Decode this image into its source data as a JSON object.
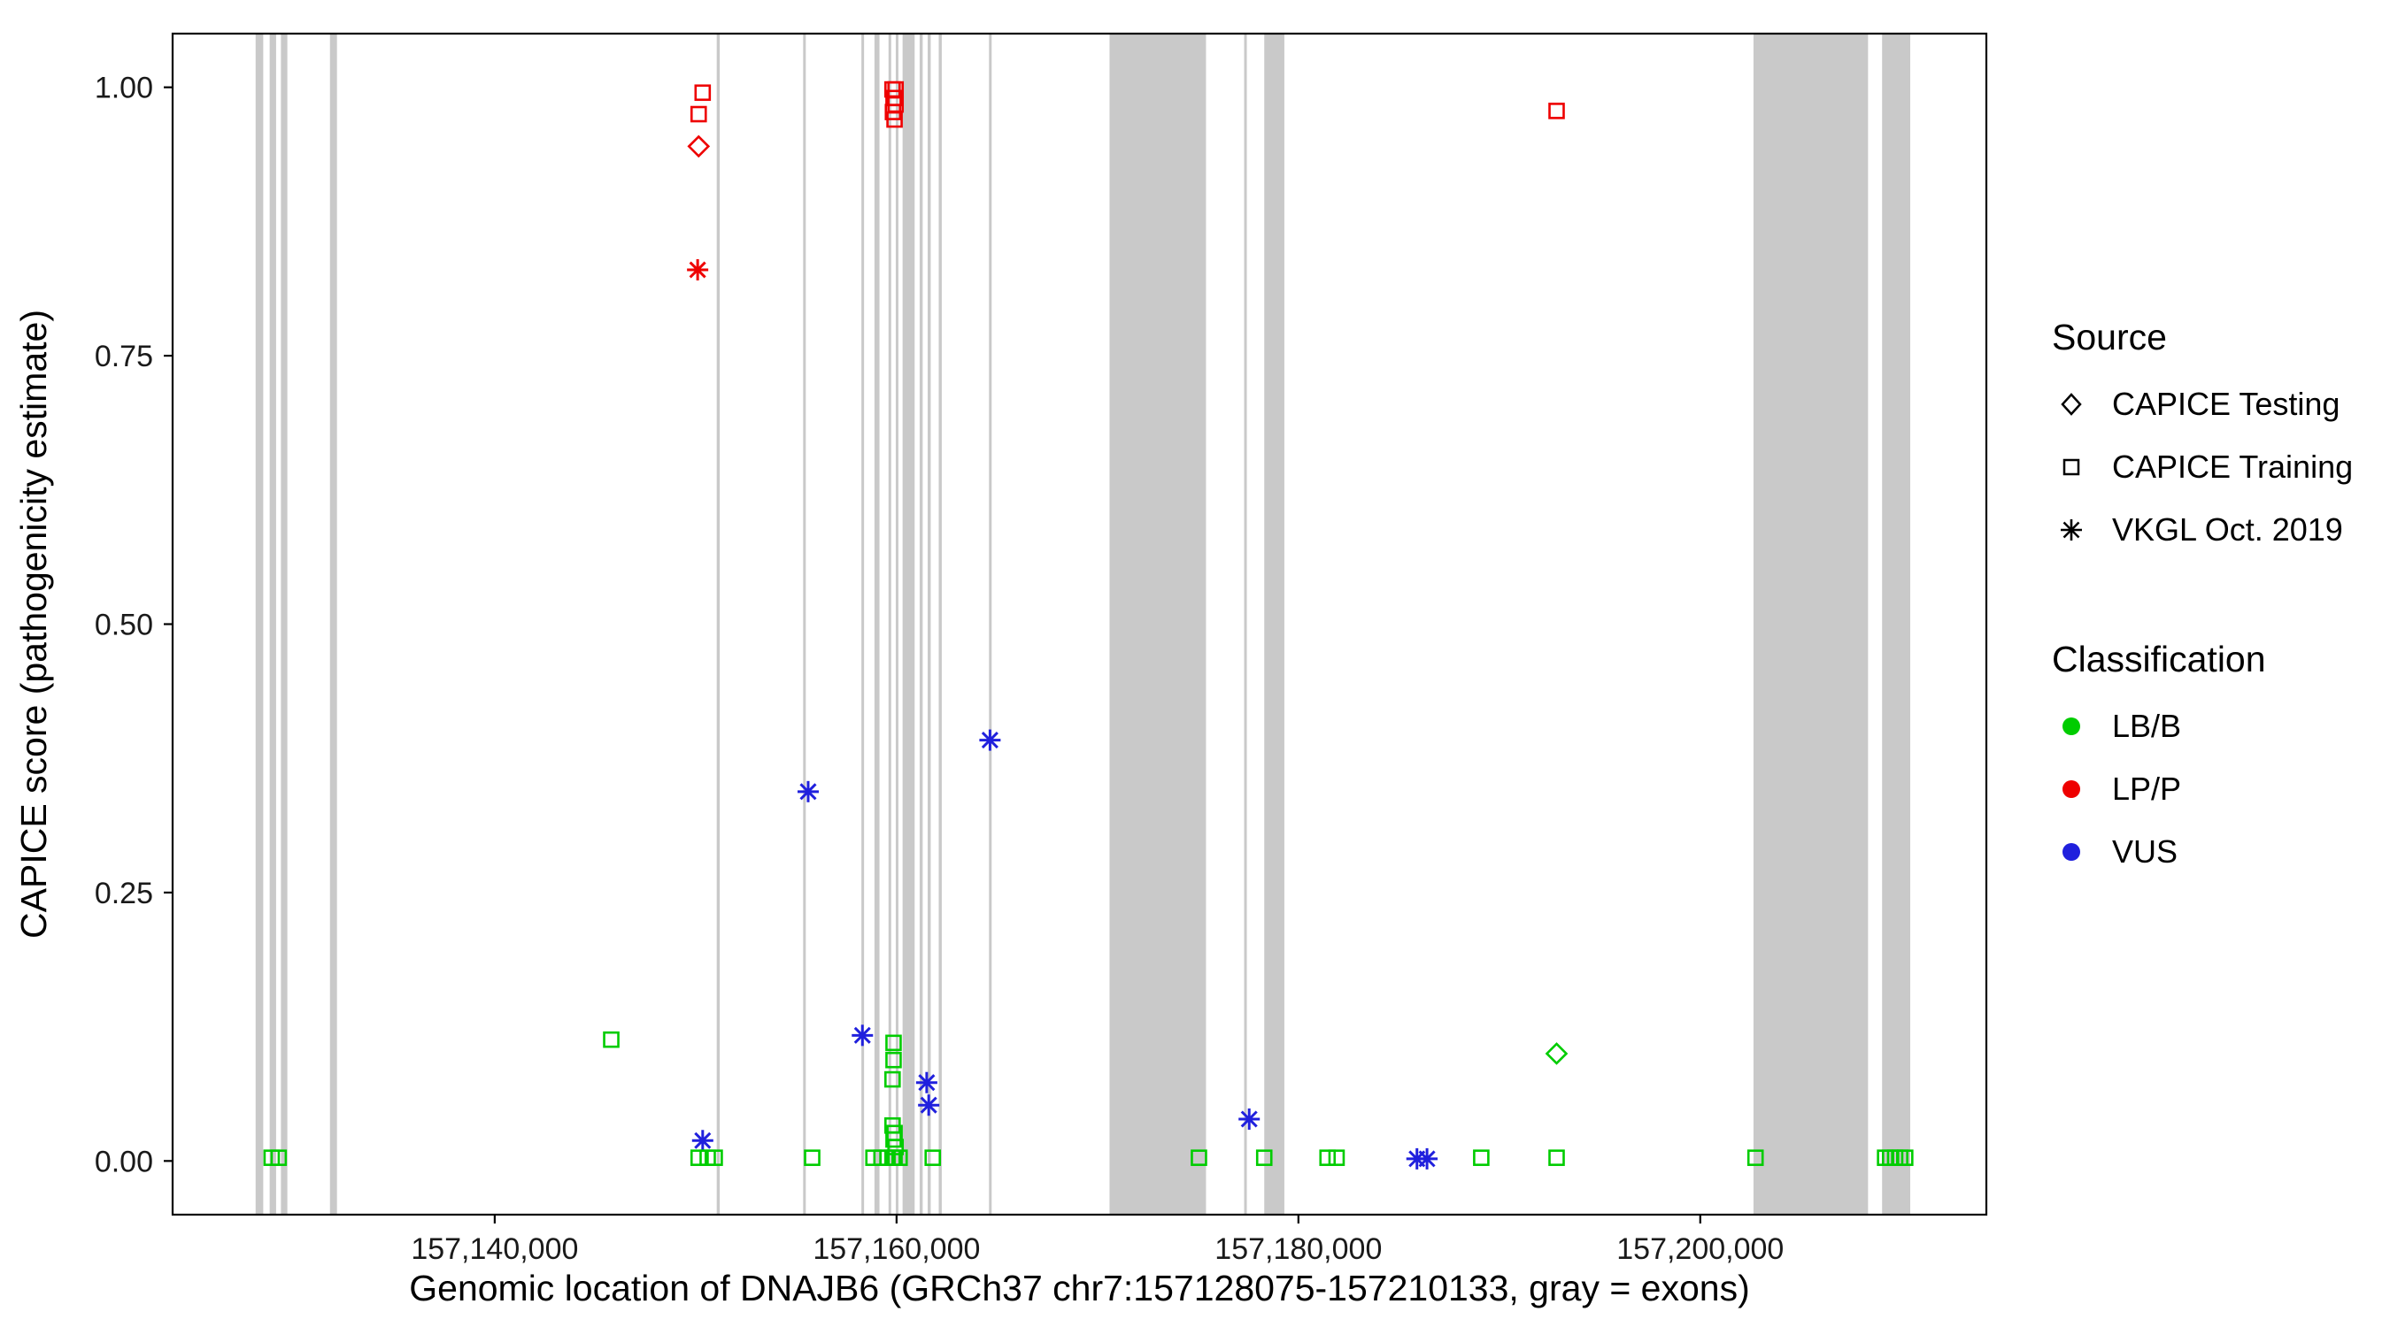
{
  "chart_data": {
    "type": "scatter",
    "xlabel": "Genomic location of DNAJB6 (GRCh37 chr7:157128075-157210133, gray = exons)",
    "ylabel": "CAPICE score (pathogenicity estimate)",
    "x_domain": [
      157123969,
      157214239
    ],
    "y_domain": [
      -0.05,
      1.05
    ],
    "x_ticks": [
      {
        "value": 157140000,
        "label": "157,140,000"
      },
      {
        "value": 157160000,
        "label": "157,160,000"
      },
      {
        "value": 157180000,
        "label": "157,180,000"
      },
      {
        "value": 157200000,
        "label": "157,200,000"
      }
    ],
    "y_ticks": [
      {
        "value": 0.0,
        "label": "0.00"
      },
      {
        "value": 0.25,
        "label": "0.25"
      },
      {
        "value": 0.5,
        "label": "0.50"
      },
      {
        "value": 0.75,
        "label": "0.75"
      },
      {
        "value": 1.0,
        "label": "1.00"
      }
    ],
    "colors": {
      "LB/B": "#00CC00",
      "LP/P": "#EE0000",
      "VUS": "#2020DD",
      "exon": "#C9C9C9"
    },
    "exons": [
      [
        157128100,
        157128480
      ],
      [
        157128800,
        157129120
      ],
      [
        157129360,
        157129680
      ],
      [
        157131800,
        157132150
      ],
      [
        157151050,
        157151200
      ],
      [
        157155350,
        157155480
      ],
      [
        157158250,
        157158370
      ],
      [
        157158900,
        157159150
      ],
      [
        157159600,
        157159720
      ],
      [
        157159960,
        157160080
      ],
      [
        157160300,
        157160900
      ],
      [
        157161150,
        157161300
      ],
      [
        157161550,
        157161700
      ],
      [
        157162100,
        157162250
      ],
      [
        157164600,
        157164720
      ],
      [
        157170600,
        157175400
      ],
      [
        157177300,
        157177420
      ],
      [
        157178300,
        157179300
      ],
      [
        157202650,
        157208350
      ],
      [
        157209050,
        157210450
      ]
    ],
    "legend": {
      "source": {
        "title": "Source",
        "items": [
          {
            "shape": "diamond",
            "label": "CAPICE Testing"
          },
          {
            "shape": "square",
            "label": "CAPICE Training"
          },
          {
            "shape": "asterisk",
            "label": "VKGL Oct. 2019"
          }
        ]
      },
      "classification": {
        "title": "Classification",
        "items": [
          {
            "color_key": "LB/B",
            "label": "LB/B"
          },
          {
            "color_key": "LP/P",
            "label": "LP/P"
          },
          {
            "color_key": "VUS",
            "label": "VUS"
          }
        ]
      }
    },
    "points": [
      {
        "x": 157150350,
        "y": 0.995,
        "source": "CAPICE Training",
        "cls": "LP/P"
      },
      {
        "x": 157150150,
        "y": 0.975,
        "source": "CAPICE Training",
        "cls": "LP/P"
      },
      {
        "x": 157150150,
        "y": 0.945,
        "source": "CAPICE Testing",
        "cls": "LP/P"
      },
      {
        "x": 157150100,
        "y": 0.83,
        "source": "VKGL Oct. 2019",
        "cls": "LP/P"
      },
      {
        "x": 157159800,
        "y": 0.998,
        "source": "CAPICE Training",
        "cls": "LP/P"
      },
      {
        "x": 157159950,
        "y": 0.998,
        "source": "CAPICE Training",
        "cls": "LP/P"
      },
      {
        "x": 157159850,
        "y": 0.99,
        "source": "CAPICE Training",
        "cls": "LP/P"
      },
      {
        "x": 157159950,
        "y": 0.984,
        "source": "CAPICE Training",
        "cls": "LP/P"
      },
      {
        "x": 157159820,
        "y": 0.977,
        "source": "CAPICE Training",
        "cls": "LP/P"
      },
      {
        "x": 157159900,
        "y": 0.97,
        "source": "CAPICE Training",
        "cls": "LP/P"
      },
      {
        "x": 157192850,
        "y": 0.978,
        "source": "CAPICE Training",
        "cls": "LP/P"
      },
      {
        "x": 157155600,
        "y": 0.344,
        "source": "VKGL Oct. 2019",
        "cls": "VUS"
      },
      {
        "x": 157164650,
        "y": 0.392,
        "source": "VKGL Oct. 2019",
        "cls": "VUS"
      },
      {
        "x": 157158300,
        "y": 0.117,
        "source": "VKGL Oct. 2019",
        "cls": "VUS"
      },
      {
        "x": 157161500,
        "y": 0.073,
        "source": "VKGL Oct. 2019",
        "cls": "VUS"
      },
      {
        "x": 157161600,
        "y": 0.052,
        "source": "VKGL Oct. 2019",
        "cls": "VUS"
      },
      {
        "x": 157150350,
        "y": 0.019,
        "source": "VKGL Oct. 2019",
        "cls": "VUS"
      },
      {
        "x": 157177550,
        "y": 0.039,
        "source": "VKGL Oct. 2019",
        "cls": "VUS"
      },
      {
        "x": 157185900,
        "y": 0.002,
        "source": "VKGL Oct. 2019",
        "cls": "VUS"
      },
      {
        "x": 157186400,
        "y": 0.002,
        "source": "VKGL Oct. 2019",
        "cls": "VUS"
      },
      {
        "x": 157192850,
        "y": 0.1,
        "source": "CAPICE Testing",
        "cls": "LB/B"
      },
      {
        "x": 157145800,
        "y": 0.113,
        "source": "CAPICE Training",
        "cls": "LB/B"
      },
      {
        "x": 157159850,
        "y": 0.11,
        "source": "CAPICE Training",
        "cls": "LB/B"
      },
      {
        "x": 157159850,
        "y": 0.094,
        "source": "CAPICE Training",
        "cls": "LB/B"
      },
      {
        "x": 157159800,
        "y": 0.076,
        "source": "CAPICE Training",
        "cls": "LB/B"
      },
      {
        "x": 157159800,
        "y": 0.033,
        "source": "CAPICE Training",
        "cls": "LB/B"
      },
      {
        "x": 157159900,
        "y": 0.026,
        "source": "CAPICE Training",
        "cls": "LB/B"
      },
      {
        "x": 157159850,
        "y": 0.02,
        "source": "CAPICE Training",
        "cls": "LB/B"
      },
      {
        "x": 157159950,
        "y": 0.013,
        "source": "CAPICE Training",
        "cls": "LB/B"
      },
      {
        "x": 157128900,
        "y": 0.003,
        "source": "CAPICE Training",
        "cls": "LB/B"
      },
      {
        "x": 157129250,
        "y": 0.003,
        "source": "CAPICE Training",
        "cls": "LB/B"
      },
      {
        "x": 157150150,
        "y": 0.003,
        "source": "CAPICE Training",
        "cls": "LB/B"
      },
      {
        "x": 157150600,
        "y": 0.003,
        "source": "CAPICE Training",
        "cls": "LB/B"
      },
      {
        "x": 157150950,
        "y": 0.003,
        "source": "CAPICE Training",
        "cls": "LB/B"
      },
      {
        "x": 157155800,
        "y": 0.003,
        "source": "CAPICE Training",
        "cls": "LB/B"
      },
      {
        "x": 157158850,
        "y": 0.003,
        "source": "CAPICE Training",
        "cls": "LB/B"
      },
      {
        "x": 157159250,
        "y": 0.003,
        "source": "CAPICE Training",
        "cls": "LB/B"
      },
      {
        "x": 157159550,
        "y": 0.003,
        "source": "CAPICE Training",
        "cls": "LB/B"
      },
      {
        "x": 157159800,
        "y": 0.003,
        "source": "CAPICE Training",
        "cls": "LB/B"
      },
      {
        "x": 157159900,
        "y": 0.003,
        "source": "CAPICE Training",
        "cls": "LB/B"
      },
      {
        "x": 157160150,
        "y": 0.003,
        "source": "CAPICE Training",
        "cls": "LB/B"
      },
      {
        "x": 157161800,
        "y": 0.003,
        "source": "CAPICE Training",
        "cls": "LB/B"
      },
      {
        "x": 157175050,
        "y": 0.003,
        "source": "CAPICE Training",
        "cls": "LB/B"
      },
      {
        "x": 157178300,
        "y": 0.003,
        "source": "CAPICE Training",
        "cls": "LB/B"
      },
      {
        "x": 157181450,
        "y": 0.003,
        "source": "CAPICE Training",
        "cls": "LB/B"
      },
      {
        "x": 157181900,
        "y": 0.003,
        "source": "CAPICE Training",
        "cls": "LB/B"
      },
      {
        "x": 157189100,
        "y": 0.003,
        "source": "CAPICE Training",
        "cls": "LB/B"
      },
      {
        "x": 157192850,
        "y": 0.003,
        "source": "CAPICE Training",
        "cls": "LB/B"
      },
      {
        "x": 157202750,
        "y": 0.003,
        "source": "CAPICE Training",
        "cls": "LB/B"
      },
      {
        "x": 157209200,
        "y": 0.003,
        "source": "CAPICE Training",
        "cls": "LB/B"
      },
      {
        "x": 157209450,
        "y": 0.003,
        "source": "CAPICE Training",
        "cls": "LB/B"
      },
      {
        "x": 157209700,
        "y": 0.003,
        "source": "CAPICE Training",
        "cls": "LB/B"
      },
      {
        "x": 157209950,
        "y": 0.003,
        "source": "CAPICE Training",
        "cls": "LB/B"
      },
      {
        "x": 157210200,
        "y": 0.003,
        "source": "CAPICE Training",
        "cls": "LB/B"
      }
    ]
  }
}
